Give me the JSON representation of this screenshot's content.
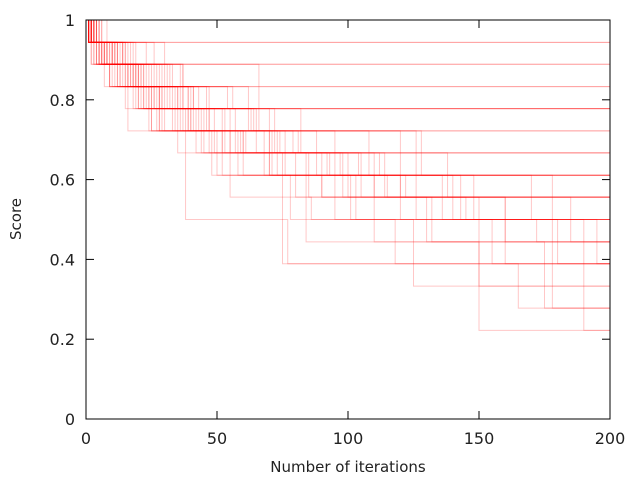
{
  "chart_data": {
    "type": "line",
    "title": "",
    "xlabel": "Number of iterations",
    "ylabel": "Score",
    "xlim": [
      0,
      200
    ],
    "ylim": [
      0,
      1
    ],
    "xticks": [
      "0",
      "50",
      "100",
      "150",
      "200"
    ],
    "yticks": [
      "0",
      "0.2",
      "0.4",
      "0.6",
      "0.8",
      "1"
    ],
    "grid": false,
    "legend": "none",
    "line_color": "#ff0000",
    "line_style": "step",
    "series": [
      {
        "x": [
          0,
          2,
          10,
          28,
          70,
          110,
          150,
          200
        ],
        "y": [
          1,
          0.944,
          0.889,
          0.778,
          0.611,
          0.444,
          0.333,
          0.333
        ]
      },
      {
        "x": [
          0,
          1,
          5,
          18,
          40,
          95,
          140,
          200
        ],
        "y": [
          1,
          0.944,
          0.889,
          0.833,
          0.722,
          0.611,
          0.5,
          0.5
        ]
      },
      {
        "x": [
          0,
          3,
          12,
          30,
          60,
          120,
          180,
          200
        ],
        "y": [
          1,
          0.944,
          0.833,
          0.722,
          0.611,
          0.5,
          0.389,
          0.389
        ]
      },
      {
        "x": [
          0,
          1,
          8,
          22,
          45,
          80,
          130,
          175,
          200
        ],
        "y": [
          1,
          0.944,
          0.889,
          0.778,
          0.667,
          0.556,
          0.444,
          0.278,
          0.278
        ]
      },
      {
        "x": [
          0,
          4,
          15,
          35,
          75,
          200
        ],
        "y": [
          1,
          0.944,
          0.833,
          0.667,
          0.389,
          0.389
        ]
      },
      {
        "x": [
          0,
          2,
          9,
          25,
          50,
          90,
          160,
          200
        ],
        "y": [
          1,
          0.889,
          0.833,
          0.722,
          0.611,
          0.556,
          0.444,
          0.444
        ]
      },
      {
        "x": [
          0,
          1,
          6,
          20,
          42,
          85,
          145,
          190,
          200
        ],
        "y": [
          1,
          0.944,
          0.889,
          0.778,
          0.667,
          0.556,
          0.5,
          0.222,
          0.222
        ]
      },
      {
        "x": [
          0,
          3,
          11,
          32,
          65,
          105,
          200
        ],
        "y": [
          1,
          0.944,
          0.889,
          0.778,
          0.667,
          0.556,
          0.556
        ]
      },
      {
        "x": [
          0,
          2,
          7,
          16,
          38,
          77,
          200
        ],
        "y": [
          1,
          0.944,
          0.889,
          0.722,
          0.5,
          0.389,
          0.389
        ]
      },
      {
        "x": [
          0,
          1,
          4,
          14,
          33,
          60,
          100,
          150,
          200
        ],
        "y": [
          1,
          0.944,
          0.889,
          0.833,
          0.722,
          0.667,
          0.556,
          0.222,
          0.222
        ]
      },
      {
        "x": [
          0,
          5,
          18,
          47,
          120,
          200
        ],
        "y": [
          1,
          0.944,
          0.833,
          0.722,
          0.556,
          0.556
        ]
      },
      {
        "x": [
          0,
          2,
          10,
          26,
          55,
          112,
          170,
          200
        ],
        "y": [
          1,
          0.944,
          0.889,
          0.778,
          0.667,
          0.611,
          0.5,
          0.5
        ]
      },
      {
        "x": [
          0,
          1,
          3,
          12,
          28,
          58,
          95,
          125,
          200
        ],
        "y": [
          1,
          0.944,
          0.889,
          0.833,
          0.722,
          0.611,
          0.5,
          0.333,
          0.333
        ]
      },
      {
        "x": [
          0,
          4,
          14,
          36,
          82,
          138,
          185,
          200
        ],
        "y": [
          1,
          0.944,
          0.889,
          0.778,
          0.667,
          0.556,
          0.444,
          0.444
        ]
      },
      {
        "x": [
          0,
          2,
          9,
          24,
          52,
          103,
          155,
          200
        ],
        "y": [
          1,
          0.889,
          0.833,
          0.722,
          0.611,
          0.5,
          0.389,
          0.389
        ]
      },
      {
        "x": [
          0,
          1,
          7,
          19,
          46,
          88,
          200
        ],
        "y": [
          1,
          0.944,
          0.889,
          0.778,
          0.722,
          0.611,
          0.611
        ]
      },
      {
        "x": [
          0,
          3,
          13,
          27,
          48,
          78,
          118,
          165,
          200
        ],
        "y": [
          1,
          0.944,
          0.833,
          0.722,
          0.611,
          0.5,
          0.389,
          0.278,
          0.278
        ]
      },
      {
        "x": [
          0,
          1,
          5,
          17,
          39,
          72,
          200
        ],
        "y": [
          1,
          0.944,
          0.889,
          0.833,
          0.722,
          0.667,
          0.667
        ]
      },
      {
        "x": [
          0,
          2,
          8,
          21,
          44,
          98,
          132,
          200
        ],
        "y": [
          1,
          0.944,
          0.889,
          0.778,
          0.667,
          0.556,
          0.444,
          0.444
        ]
      },
      {
        "x": [
          0,
          6,
          23,
          62,
          108,
          200
        ],
        "y": [
          1,
          0.944,
          0.833,
          0.722,
          0.611,
          0.611
        ]
      },
      {
        "x": [
          0,
          1,
          4,
          10,
          25,
          55,
          86,
          200
        ],
        "y": [
          1,
          0.944,
          0.889,
          0.833,
          0.722,
          0.556,
          0.5,
          0.5
        ]
      },
      {
        "x": [
          0,
          3,
          15,
          29,
          53,
          92,
          148,
          195,
          200
        ],
        "y": [
          1,
          0.944,
          0.889,
          0.778,
          0.667,
          0.611,
          0.5,
          0.389,
          0.389
        ]
      },
      {
        "x": [
          0,
          2,
          6,
          20,
          41,
          70,
          115,
          200
        ],
        "y": [
          1,
          0.944,
          0.889,
          0.833,
          0.722,
          0.611,
          0.556,
          0.556
        ]
      },
      {
        "x": [
          0,
          1,
          11,
          31,
          64,
          128,
          178,
          200
        ],
        "y": [
          1,
          0.944,
          0.889,
          0.778,
          0.722,
          0.611,
          0.278,
          0.278
        ]
      },
      {
        "x": [
          0,
          5,
          16,
          34,
          68,
          101,
          200
        ],
        "y": [
          1,
          0.944,
          0.833,
          0.722,
          0.611,
          0.5,
          0.5
        ]
      },
      {
        "x": [
          0,
          2,
          8,
          22,
          49,
          84,
          200
        ],
        "y": [
          1,
          0.944,
          0.889,
          0.778,
          0.667,
          0.444,
          0.444
        ]
      },
      {
        "x": [
          0,
          1,
          3,
          9,
          26,
          57,
          110,
          200
        ],
        "y": [
          1,
          0.944,
          0.889,
          0.833,
          0.778,
          0.667,
          0.556,
          0.556
        ]
      },
      {
        "x": [
          0,
          4,
          12,
          37,
          73,
          143,
          200
        ],
        "y": [
          1,
          0.944,
          0.889,
          0.722,
          0.611,
          0.5,
          0.5
        ]
      },
      {
        "x": [
          0,
          2,
          7,
          23,
          47,
          90,
          160,
          200
        ],
        "y": [
          1,
          0.944,
          0.833,
          0.778,
          0.667,
          0.556,
          0.389,
          0.389
        ]
      },
      {
        "x": [
          0,
          1,
          6,
          18,
          40,
          76,
          122,
          200
        ],
        "y": [
          1,
          0.944,
          0.889,
          0.778,
          0.722,
          0.611,
          0.556,
          0.556
        ]
      },
      {
        "x": [
          0,
          3,
          14,
          30,
          66,
          200
        ],
        "y": [
          1,
          0.944,
          0.889,
          0.833,
          0.722,
          0.722
        ]
      },
      {
        "x": [
          0,
          1,
          5,
          13,
          28,
          61,
          97,
          200
        ],
        "y": [
          1,
          0.944,
          0.889,
          0.833,
          0.722,
          0.667,
          0.611,
          0.611
        ]
      },
      {
        "x": [
          0,
          2,
          10,
          24,
          52,
          93,
          136,
          200
        ],
        "y": [
          1,
          0.944,
          0.889,
          0.778,
          0.667,
          0.611,
          0.5,
          0.5
        ]
      },
      {
        "x": [
          0,
          4,
          17,
          43,
          81,
          200
        ],
        "y": [
          1,
          0.944,
          0.833,
          0.722,
          0.667,
          0.667
        ]
      },
      {
        "x": [
          0,
          1,
          7,
          20,
          36,
          71,
          126,
          172,
          200
        ],
        "y": [
          1,
          0.944,
          0.889,
          0.778,
          0.722,
          0.611,
          0.5,
          0.444,
          0.444
        ]
      },
      {
        "x": [
          0,
          2,
          9,
          27,
          56,
          200
        ],
        "y": [
          1,
          0.944,
          0.889,
          0.833,
          0.778,
          0.778
        ]
      },
      {
        "x": [
          0,
          3,
          11,
          29,
          59,
          104,
          200
        ],
        "y": [
          1,
          0.944,
          0.833,
          0.722,
          0.667,
          0.611,
          0.611
        ]
      },
      {
        "x": [
          0,
          1,
          4,
          15,
          38,
          79,
          200
        ],
        "y": [
          1,
          0.944,
          0.889,
          0.778,
          0.722,
          0.667,
          0.667
        ]
      },
      {
        "x": [
          0,
          2,
          8,
          21,
          46,
          200
        ],
        "y": [
          1,
          0.944,
          0.889,
          0.833,
          0.778,
          0.778
        ]
      },
      {
        "x": [
          0,
          5,
          19,
          39,
          74,
          114,
          200
        ],
        "y": [
          1,
          0.944,
          0.833,
          0.722,
          0.667,
          0.556,
          0.556
        ]
      },
      {
        "x": [
          0,
          1,
          6,
          16,
          35,
          63,
          200
        ],
        "y": [
          1,
          0.944,
          0.889,
          0.833,
          0.778,
          0.722,
          0.722
        ]
      },
      {
        "x": [
          0,
          3,
          12,
          33,
          200
        ],
        "y": [
          1,
          0.944,
          0.889,
          0.833,
          0.833
        ]
      },
      {
        "x": [
          0,
          2,
          9,
          25,
          54,
          200
        ],
        "y": [
          1,
          0.944,
          0.889,
          0.833,
          0.778,
          0.778
        ]
      },
      {
        "x": [
          0,
          1,
          10,
          200
        ],
        "y": [
          1,
          0.944,
          0.889,
          0.889
        ]
      },
      {
        "x": [
          0,
          4,
          26,
          200
        ],
        "y": [
          1,
          0.944,
          0.889,
          0.889
        ]
      },
      {
        "x": [
          0,
          2,
          45,
          200
        ],
        "y": [
          1,
          0.944,
          0.944,
          0.944
        ]
      },
      {
        "x": [
          0,
          8,
          30,
          66,
          200
        ],
        "y": [
          1,
          0.944,
          0.889,
          0.833,
          0.833
        ]
      },
      {
        "x": [
          0,
          6,
          200
        ],
        "y": [
          1,
          0.944,
          0.944
        ]
      },
      {
        "x": [
          0,
          1,
          5,
          19,
          41,
          200
        ],
        "y": [
          1,
          0.944,
          0.889,
          0.833,
          0.778,
          0.778
        ]
      },
      {
        "x": [
          0,
          3,
          14,
          37,
          72,
          126,
          200
        ],
        "y": [
          1,
          0.944,
          0.889,
          0.778,
          0.722,
          0.611,
          0.611
        ]
      }
    ]
  }
}
